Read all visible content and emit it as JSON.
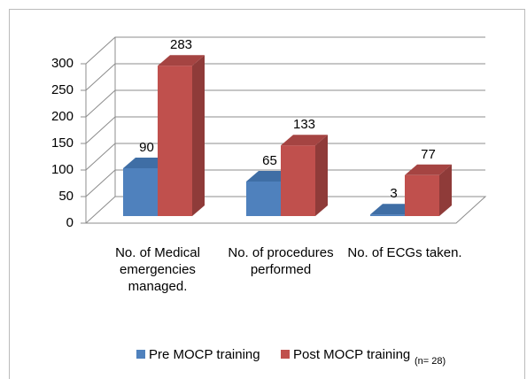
{
  "chart_data": {
    "type": "bar3d",
    "categories": [
      "No. of Medical emergencies managed.",
      "No. of procedures performed",
      "No. of ECGs taken."
    ],
    "series": [
      {
        "name": "Pre MOCP training",
        "color": "#4f81bd",
        "side": "#3a6190",
        "top": "#3f6ea5",
        "values": [
          90,
          65,
          3
        ]
      },
      {
        "name": "Post MOCP training",
        "color": "#c0504d",
        "side": "#8f3b39",
        "top": "#a54442",
        "values": [
          283,
          133,
          77
        ]
      }
    ],
    "ylim": [
      0,
      300
    ],
    "yticks": [
      0,
      50,
      100,
      150,
      200,
      250,
      300
    ],
    "grid": true,
    "annotation": "(n= 28)"
  }
}
